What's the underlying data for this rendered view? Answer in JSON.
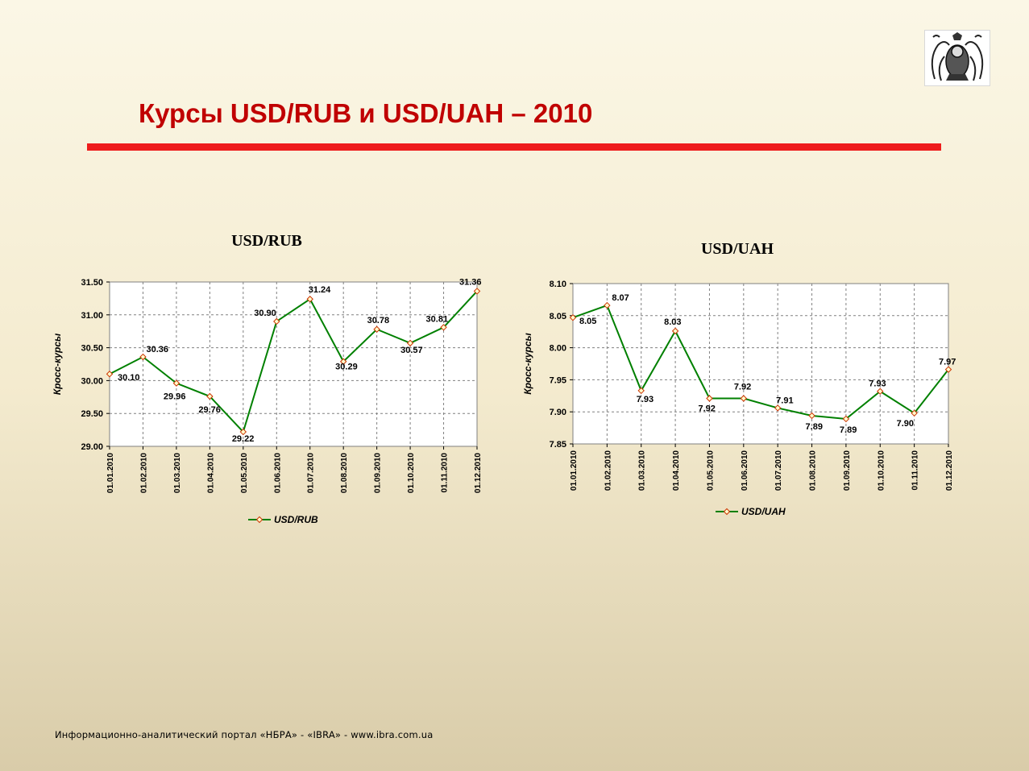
{
  "slide": {
    "title": "Курсы USD/RUB и USD/UAH – 2010",
    "footer": "Информационно-аналитический портал «НБРА» - «IBRA» - www.ibra.com.ua",
    "colors": {
      "title": "#c00000",
      "rule": "#ee1c1c",
      "line": "#008000",
      "marker": "#cc3300",
      "marker_fill": "#ffffcc",
      "plot_bg": "#ffffff"
    }
  },
  "logo": {
    "icon": "ornamental-emblem-icon"
  },
  "chart_data": [
    {
      "type": "line",
      "title": "USD/RUB",
      "ylabel": "Кросс-курсы",
      "xlabel": "",
      "ylim": [
        29.0,
        31.5
      ],
      "ytick_step": 0.5,
      "categories": [
        "01.01.2010",
        "01.02.2010",
        "01.03.2010",
        "01.04.2010",
        "01.05.2010",
        "01.06.2010",
        "01.07.2010",
        "01.08.2010",
        "01.09.2010",
        "01.10.2010",
        "01.11.2010",
        "01.12.2010"
      ],
      "series": [
        {
          "name": "USD/RUB",
          "values": [
            30.1,
            30.36,
            29.96,
            29.76,
            29.22,
            30.9,
            31.24,
            30.29,
            30.78,
            30.57,
            30.81,
            31.36
          ]
        }
      ],
      "data_labels": [
        "30.10",
        "30.36",
        "29.96",
        "29.76",
        "29.22",
        "30.90",
        "31.24",
        "30.29",
        "30.78",
        "30.57",
        "30.81",
        "31.36"
      ],
      "grid": true,
      "legend": "bottom"
    },
    {
      "type": "line",
      "title": "USD/UAH",
      "ylabel": "Кросс-курсы",
      "xlabel": "",
      "ylim": [
        7.85,
        8.1
      ],
      "ytick_step": 0.05,
      "categories": [
        "01.01.2010",
        "01.02.2010",
        "01.03.2010",
        "01.04.2010",
        "01.05.2010",
        "01.06.2010",
        "01.07.2010",
        "01.08.2010",
        "01.09.2010",
        "01.10.2010",
        "01.11.2010",
        "01.12.2010"
      ],
      "series": [
        {
          "name": "USD/UAH",
          "values": [
            8.047,
            8.066,
            7.933,
            8.026,
            7.921,
            7.921,
            7.906,
            7.894,
            7.889,
            7.932,
            7.898,
            7.966
          ]
        }
      ],
      "data_labels": [
        "8.05",
        "8.07",
        "7.93",
        "8.03",
        "7.92",
        "7.92",
        "7.91",
        "7.89",
        "7.89",
        "7.93",
        "7.90",
        "7.97"
      ],
      "grid": true,
      "legend": "bottom"
    }
  ]
}
